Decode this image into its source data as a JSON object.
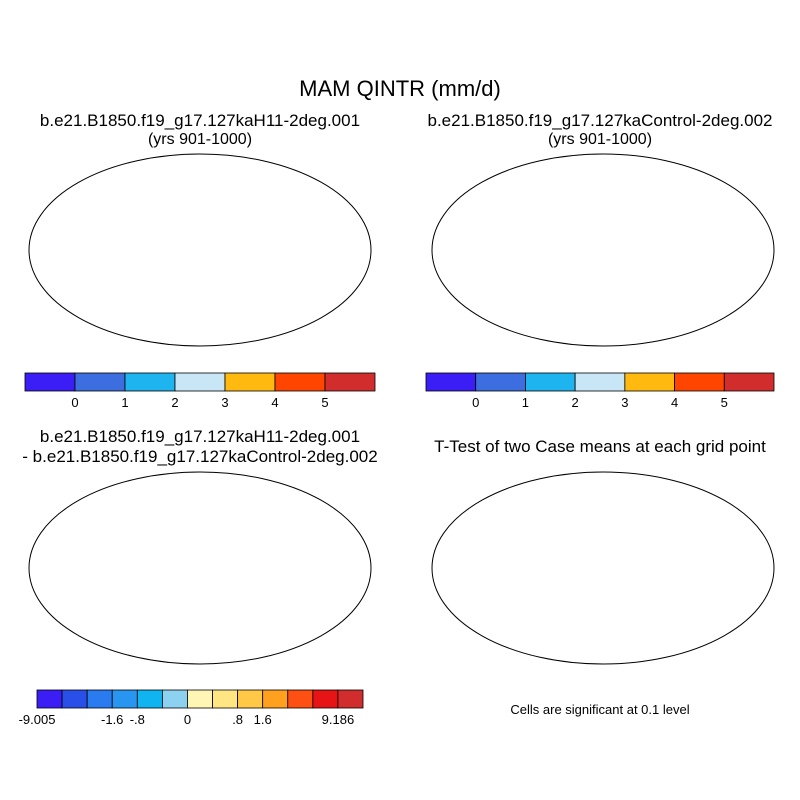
{
  "title": "MAM QINTR (mm/d)",
  "panels": [
    {
      "title": "b.e21.B1850.f19_g17.127kaH11-2deg.001",
      "subtitle": "(yrs 901-1000)"
    },
    {
      "title": "b.e21.B1850.f19_g17.127kaControl-2deg.002",
      "subtitle": "(yrs 901-1000)"
    },
    {
      "title": "b.e21.B1850.f19_g17.127kaH11-2deg.001",
      "subtitle": "- b.e21.B1850.f19_g17.127kaControl-2deg.002"
    },
    {
      "title": "T-Test of two Case means at each grid point",
      "subtitle": ""
    }
  ],
  "colorbar_abs": {
    "colors": [
      "#3b1ef5",
      "#3d6ee0",
      "#1eb4f0",
      "#c8e6f5",
      "#ffb90f",
      "#ff4500",
      "#d22d2d"
    ],
    "labels": [
      "0",
      "1",
      "2",
      "3",
      "4",
      "5"
    ]
  },
  "colorbar_diff": {
    "colors": [
      "#3b1ef5",
      "#2a4fe8",
      "#2a7af0",
      "#2896f0",
      "#10b4f0",
      "#8cd2f0",
      "#fff5b4",
      "#ffe682",
      "#ffc846",
      "#ffa01e",
      "#ff5014",
      "#e61414",
      "#d22d2d"
    ],
    "labels": [
      "-9.005",
      "-1.6",
      "-.8",
      "0",
      ".8",
      "1.6",
      "9.186"
    ]
  },
  "significance_note": "Cells are significant at 0.1 level"
}
